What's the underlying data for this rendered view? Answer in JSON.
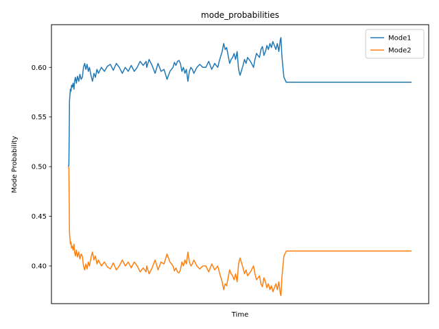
{
  "chart_data": {
    "type": "line",
    "title": "mode_probabilities",
    "xlabel": "Time",
    "ylabel": "Mode Probability",
    "xticks_visible": false,
    "grid": false,
    "legend_position": "top-right",
    "ylim": [
      0.362,
      0.643
    ],
    "yticks": [
      0.4,
      0.45,
      0.5,
      0.55,
      0.6
    ],
    "ytick_labels": [
      "0.40",
      "0.45",
      "0.50",
      "0.55",
      "0.60"
    ],
    "x": [
      0,
      1,
      2,
      3,
      4,
      5,
      6,
      8,
      10,
      12,
      15,
      18,
      20,
      23,
      26,
      30,
      34,
      38,
      42,
      46,
      50,
      54,
      58,
      62,
      66,
      70,
      75,
      80,
      85,
      90,
      95,
      100,
      110,
      120,
      130,
      140,
      150,
      160,
      170,
      180,
      190,
      200,
      210,
      220,
      230,
      240,
      250,
      260,
      262,
      265,
      270,
      280,
      290,
      300,
      310,
      320,
      330,
      340,
      350,
      355,
      360,
      365,
      370,
      375,
      380,
      385,
      390,
      395,
      400,
      405,
      410,
      415,
      420,
      430,
      440,
      450,
      460,
      470,
      480,
      490,
      500,
      505,
      510,
      515,
      520,
      525,
      530,
      535,
      540,
      545,
      550,
      555,
      560,
      565,
      570,
      575,
      580,
      585,
      590,
      595,
      600,
      610,
      620,
      625,
      630,
      635,
      640,
      645,
      650,
      655,
      660,
      665,
      670,
      675,
      680,
      685,
      690,
      695,
      700,
      705,
      710,
      712,
      715,
      718,
      722,
      730,
      760,
      800,
      850,
      900,
      950,
      1000,
      1050,
      1100,
      1150
    ],
    "series": [
      {
        "name": "Mode1",
        "color": "#1f77b4",
        "values": [
          0.5,
          0.502,
          0.53,
          0.566,
          0.57,
          0.574,
          0.578,
          0.576,
          0.582,
          0.58,
          0.584,
          0.578,
          0.586,
          0.59,
          0.584,
          0.591,
          0.586,
          0.593,
          0.588,
          0.59,
          0.6,
          0.604,
          0.598,
          0.603,
          0.596,
          0.6,
          0.592,
          0.586,
          0.594,
          0.59,
          0.598,
          0.594,
          0.6,
          0.596,
          0.601,
          0.603,
          0.597,
          0.604,
          0.6,
          0.594,
          0.6,
          0.596,
          0.602,
          0.596,
          0.6,
          0.606,
          0.602,
          0.606,
          0.6,
          0.603,
          0.608,
          0.602,
          0.594,
          0.604,
          0.596,
          0.598,
          0.588,
          0.596,
          0.6,
          0.605,
          0.602,
          0.606,
          0.607,
          0.604,
          0.596,
          0.6,
          0.594,
          0.598,
          0.586,
          0.596,
          0.6,
          0.598,
          0.594,
          0.6,
          0.603,
          0.6,
          0.6,
          0.606,
          0.598,
          0.604,
          0.6,
          0.606,
          0.611,
          0.616,
          0.624,
          0.618,
          0.62,
          0.612,
          0.604,
          0.608,
          0.61,
          0.614,
          0.608,
          0.616,
          0.598,
          0.592,
          0.597,
          0.602,
          0.608,
          0.604,
          0.61,
          0.606,
          0.6,
          0.608,
          0.614,
          0.612,
          0.61,
          0.618,
          0.621,
          0.612,
          0.616,
          0.622,
          0.618,
          0.624,
          0.62,
          0.626,
          0.622,
          0.618,
          0.624,
          0.616,
          0.628,
          0.63,
          0.612,
          0.602,
          0.59,
          0.585,
          0.585,
          0.585,
          0.585,
          0.585,
          0.585,
          0.585,
          0.585,
          0.585,
          0.585
        ]
      },
      {
        "name": "Mode2",
        "color": "#ff7f0e",
        "values": [
          0.5,
          0.498,
          0.47,
          0.434,
          0.43,
          0.426,
          0.422,
          0.424,
          0.418,
          0.42,
          0.416,
          0.422,
          0.414,
          0.41,
          0.416,
          0.409,
          0.414,
          0.407,
          0.412,
          0.41,
          0.4,
          0.396,
          0.402,
          0.397,
          0.404,
          0.4,
          0.408,
          0.414,
          0.406,
          0.41,
          0.402,
          0.406,
          0.4,
          0.404,
          0.399,
          0.397,
          0.403,
          0.396,
          0.4,
          0.406,
          0.4,
          0.404,
          0.398,
          0.404,
          0.4,
          0.394,
          0.398,
          0.394,
          0.4,
          0.397,
          0.392,
          0.398,
          0.406,
          0.396,
          0.404,
          0.402,
          0.412,
          0.404,
          0.4,
          0.395,
          0.398,
          0.394,
          0.393,
          0.396,
          0.404,
          0.4,
          0.406,
          0.402,
          0.414,
          0.404,
          0.4,
          0.402,
          0.406,
          0.4,
          0.397,
          0.4,
          0.4,
          0.394,
          0.402,
          0.396,
          0.4,
          0.394,
          0.389,
          0.384,
          0.376,
          0.382,
          0.38,
          0.388,
          0.396,
          0.392,
          0.39,
          0.386,
          0.392,
          0.384,
          0.402,
          0.408,
          0.403,
          0.398,
          0.392,
          0.396,
          0.39,
          0.394,
          0.4,
          0.392,
          0.386,
          0.388,
          0.39,
          0.382,
          0.379,
          0.388,
          0.384,
          0.378,
          0.382,
          0.376,
          0.38,
          0.374,
          0.378,
          0.382,
          0.376,
          0.384,
          0.372,
          0.37,
          0.388,
          0.398,
          0.41,
          0.415,
          0.415,
          0.415,
          0.415,
          0.415,
          0.415,
          0.415,
          0.415,
          0.415,
          0.415
        ]
      }
    ]
  }
}
